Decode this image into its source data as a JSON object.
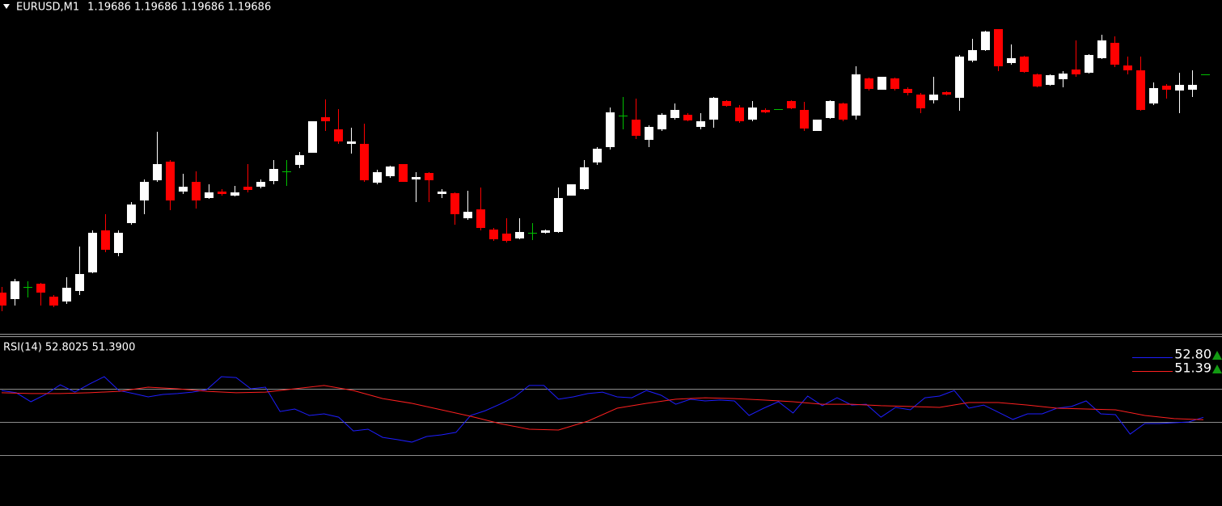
{
  "chart_data": [
    {
      "type": "candlestick",
      "symbol": "EURUSD,M1",
      "quote": [
        1.19686,
        1.19686,
        1.19686,
        1.19686
      ],
      "ylim": [
        1.19366,
        1.19778
      ],
      "colors": {
        "up": "#ffffff",
        "down": "#ff0000",
        "doji": "#00c000"
      },
      "open": [
        1.19416,
        1.19408,
        1.19423,
        1.19427,
        1.19411,
        1.19405,
        1.19418,
        1.19441,
        1.19493,
        1.19465,
        1.19502,
        1.1953,
        1.19555,
        1.19578,
        1.19541,
        1.19553,
        1.19533,
        1.19541,
        1.19536,
        1.19547,
        1.19547,
        1.19554,
        1.19566,
        1.19574,
        1.19589,
        1.19633,
        1.19618,
        1.196,
        1.196,
        1.19552,
        1.1956,
        1.19575,
        1.19556,
        1.19564,
        1.19538,
        1.19539,
        1.19508,
        1.19519,
        1.19494,
        1.19489,
        1.19483,
        1.1949,
        1.1949,
        1.19491,
        1.19536,
        1.19544,
        1.19577,
        1.19596,
        1.19635,
        1.1963,
        1.19605,
        1.19618,
        1.19632,
        1.19636,
        1.19621,
        1.1963,
        1.19653,
        1.19645,
        1.1963,
        1.19642,
        1.19643,
        1.19653,
        1.19642,
        1.19616,
        1.19632,
        1.1965,
        1.19635,
        1.19681,
        1.19667,
        1.19681,
        1.19668,
        1.19661,
        1.19654,
        1.19664,
        1.19657,
        1.19703,
        1.19716,
        1.19742,
        1.197,
        1.19708,
        1.19686,
        1.19673,
        1.1968,
        1.19692,
        1.19688,
        1.19706,
        1.19725,
        1.19697,
        1.19691,
        1.1965,
        1.19672,
        1.19666,
        1.19667,
        1.19686
      ],
      "high": [
        1.19423,
        1.19433,
        1.1943,
        1.19428,
        1.19413,
        1.19435,
        1.19473,
        1.19493,
        1.19513,
        1.19493,
        1.19528,
        1.19556,
        1.19615,
        1.1958,
        1.19563,
        1.19566,
        1.1955,
        1.19544,
        1.19548,
        1.19575,
        1.19556,
        1.1958,
        1.1958,
        1.1959,
        1.19628,
        1.19655,
        1.19643,
        1.1962,
        1.19625,
        1.19568,
        1.19573,
        1.19575,
        1.19565,
        1.19565,
        1.19544,
        1.1954,
        1.19542,
        1.19546,
        1.19496,
        1.19508,
        1.19508,
        1.19502,
        1.19494,
        1.19546,
        1.1955,
        1.1958,
        1.19596,
        1.19645,
        1.19658,
        1.19656,
        1.19623,
        1.19638,
        1.1965,
        1.19638,
        1.19638,
        1.19658,
        1.19654,
        1.19648,
        1.19653,
        1.19644,
        1.19643,
        1.19654,
        1.19652,
        1.1963,
        1.19654,
        1.19651,
        1.19696,
        1.19682,
        1.19683,
        1.19682,
        1.1967,
        1.19663,
        1.19683,
        1.19665,
        1.1971,
        1.1973,
        1.1974,
        1.19742,
        1.19723,
        1.19709,
        1.19687,
        1.19686,
        1.1969,
        1.19728,
        1.19711,
        1.19735,
        1.19733,
        1.19708,
        1.19708,
        1.19676,
        1.19674,
        1.19688,
        1.19691,
        1.19686
      ],
      "low": [
        1.19393,
        1.194,
        1.1941,
        1.194,
        1.19398,
        1.19402,
        1.19413,
        1.1944,
        1.19466,
        1.19461,
        1.195,
        1.19513,
        1.19553,
        1.19518,
        1.19538,
        1.1952,
        1.19532,
        1.19536,
        1.19535,
        1.1954,
        1.19545,
        1.1955,
        1.19548,
        1.1957,
        1.19589,
        1.19616,
        1.196,
        1.19588,
        1.19553,
        1.1955,
        1.19558,
        1.19553,
        1.19528,
        1.19528,
        1.19533,
        1.195,
        1.19506,
        1.19493,
        1.1948,
        1.19478,
        1.19482,
        1.19481,
        1.19489,
        1.1949,
        1.19536,
        1.19543,
        1.19574,
        1.19593,
        1.19618,
        1.19606,
        1.19596,
        1.19616,
        1.1963,
        1.19628,
        1.19618,
        1.1962,
        1.19646,
        1.19626,
        1.19628,
        1.19638,
        1.19643,
        1.19643,
        1.19616,
        1.19616,
        1.19631,
        1.19628,
        1.1963,
        1.19666,
        1.19667,
        1.19666,
        1.1966,
        1.19638,
        1.1965,
        1.1966,
        1.19641,
        1.19701,
        1.19715,
        1.1969,
        1.19698,
        1.19688,
        1.1967,
        1.19672,
        1.1967,
        1.19683,
        1.19687,
        1.19705,
        1.19695,
        1.19686,
        1.19641,
        1.19648,
        1.19656,
        1.19638,
        1.19658,
        1.19686
      ],
      "close": [
        1.194,
        1.1943,
        1.19423,
        1.19416,
        1.194,
        1.19422,
        1.19439,
        1.1949,
        1.19469,
        1.1949,
        1.19525,
        1.19553,
        1.19575,
        1.1953,
        1.19547,
        1.1953,
        1.1954,
        1.19538,
        1.1954,
        1.19543,
        1.19553,
        1.19569,
        1.19566,
        1.19586,
        1.19628,
        1.19628,
        1.19603,
        1.19603,
        1.19555,
        1.19565,
        1.19572,
        1.19553,
        1.19559,
        1.19555,
        1.19541,
        1.19513,
        1.19516,
        1.19496,
        1.19482,
        1.1948,
        1.19491,
        1.1949,
        1.19493,
        1.19533,
        1.1955,
        1.19571,
        1.19594,
        1.19639,
        1.19635,
        1.1961,
        1.19621,
        1.19636,
        1.19642,
        1.19629,
        1.19628,
        1.19657,
        1.19647,
        1.19628,
        1.19645,
        1.19639,
        1.19643,
        1.19644,
        1.19619,
        1.1963,
        1.19653,
        1.1963,
        1.19686,
        1.19668,
        1.19683,
        1.19668,
        1.19663,
        1.19644,
        1.19661,
        1.19661,
        1.19708,
        1.19716,
        1.19739,
        1.19696,
        1.19706,
        1.19689,
        1.19671,
        1.19685,
        1.19687,
        1.19686,
        1.1971,
        1.19728,
        1.19698,
        1.19691,
        1.19642,
        1.19669,
        1.19667,
        1.19673,
        1.19673,
        1.19686
      ]
    },
    {
      "type": "line",
      "title": "RSI(14)",
      "header_labels": [
        "52.8025",
        "51.3900"
      ],
      "marker_labels": [
        "52.80",
        "51.39"
      ],
      "marker_color": "#129a12",
      "ylim": [
        0,
        100
      ],
      "levels": [
        30,
        50,
        70
      ],
      "level_color": "#8c8c8c",
      "series": [
        {
          "color": "#1e1eff",
          "values": [
            69.0,
            67.6,
            62.2,
            66.6,
            72.4,
            68.0,
            72.9,
            77.3,
            69.0,
            67.1,
            65.1,
            66.6,
            67.1,
            68.0,
            69.5,
            77.3,
            76.8,
            70.0,
            71.0,
            56.3,
            57.8,
            53.9,
            54.9,
            52.9,
            44.6,
            45.6,
            40.7,
            39.3,
            37.8,
            41.2,
            42.2,
            43.7,
            53.9,
            56.8,
            60.7,
            65.1,
            72.0,
            72.0,
            63.7,
            65.1,
            67.1,
            68.0,
            65.1,
            64.6,
            69.0,
            66.1,
            60.7,
            63.7,
            62.7,
            63.2,
            62.7,
            53.9,
            58.3,
            62.2,
            55.4,
            65.6,
            59.8,
            64.6,
            60.2,
            60.7,
            52.9,
            58.8,
            57.3,
            64.6,
            65.6,
            69.0,
            58.3,
            60.2,
            55.9,
            51.5,
            54.9,
            54.9,
            58.3,
            59.3,
            62.7,
            54.9,
            54.4,
            42.7,
            49.0,
            49.0,
            49.5,
            50.0,
            52.8025
          ]
        },
        {
          "color": "#ff2020",
          "values": [
            67.6,
            67.1,
            67.1,
            67.6,
            68.5,
            71.0,
            70.0,
            68.5,
            67.6,
            68.0,
            70.0,
            72.0,
            69.0,
            64.1,
            61.2,
            57.3,
            53.4,
            49.0,
            45.6,
            45.1,
            50.5,
            58.3,
            61.2,
            63.7,
            64.6,
            64.1,
            63.2,
            62.2,
            60.7,
            60.7,
            59.8,
            59.3,
            58.8,
            61.7,
            61.7,
            60.2,
            58.3,
            57.8,
            57.3,
            53.9,
            52.0,
            51.39
          ]
        }
      ]
    }
  ]
}
